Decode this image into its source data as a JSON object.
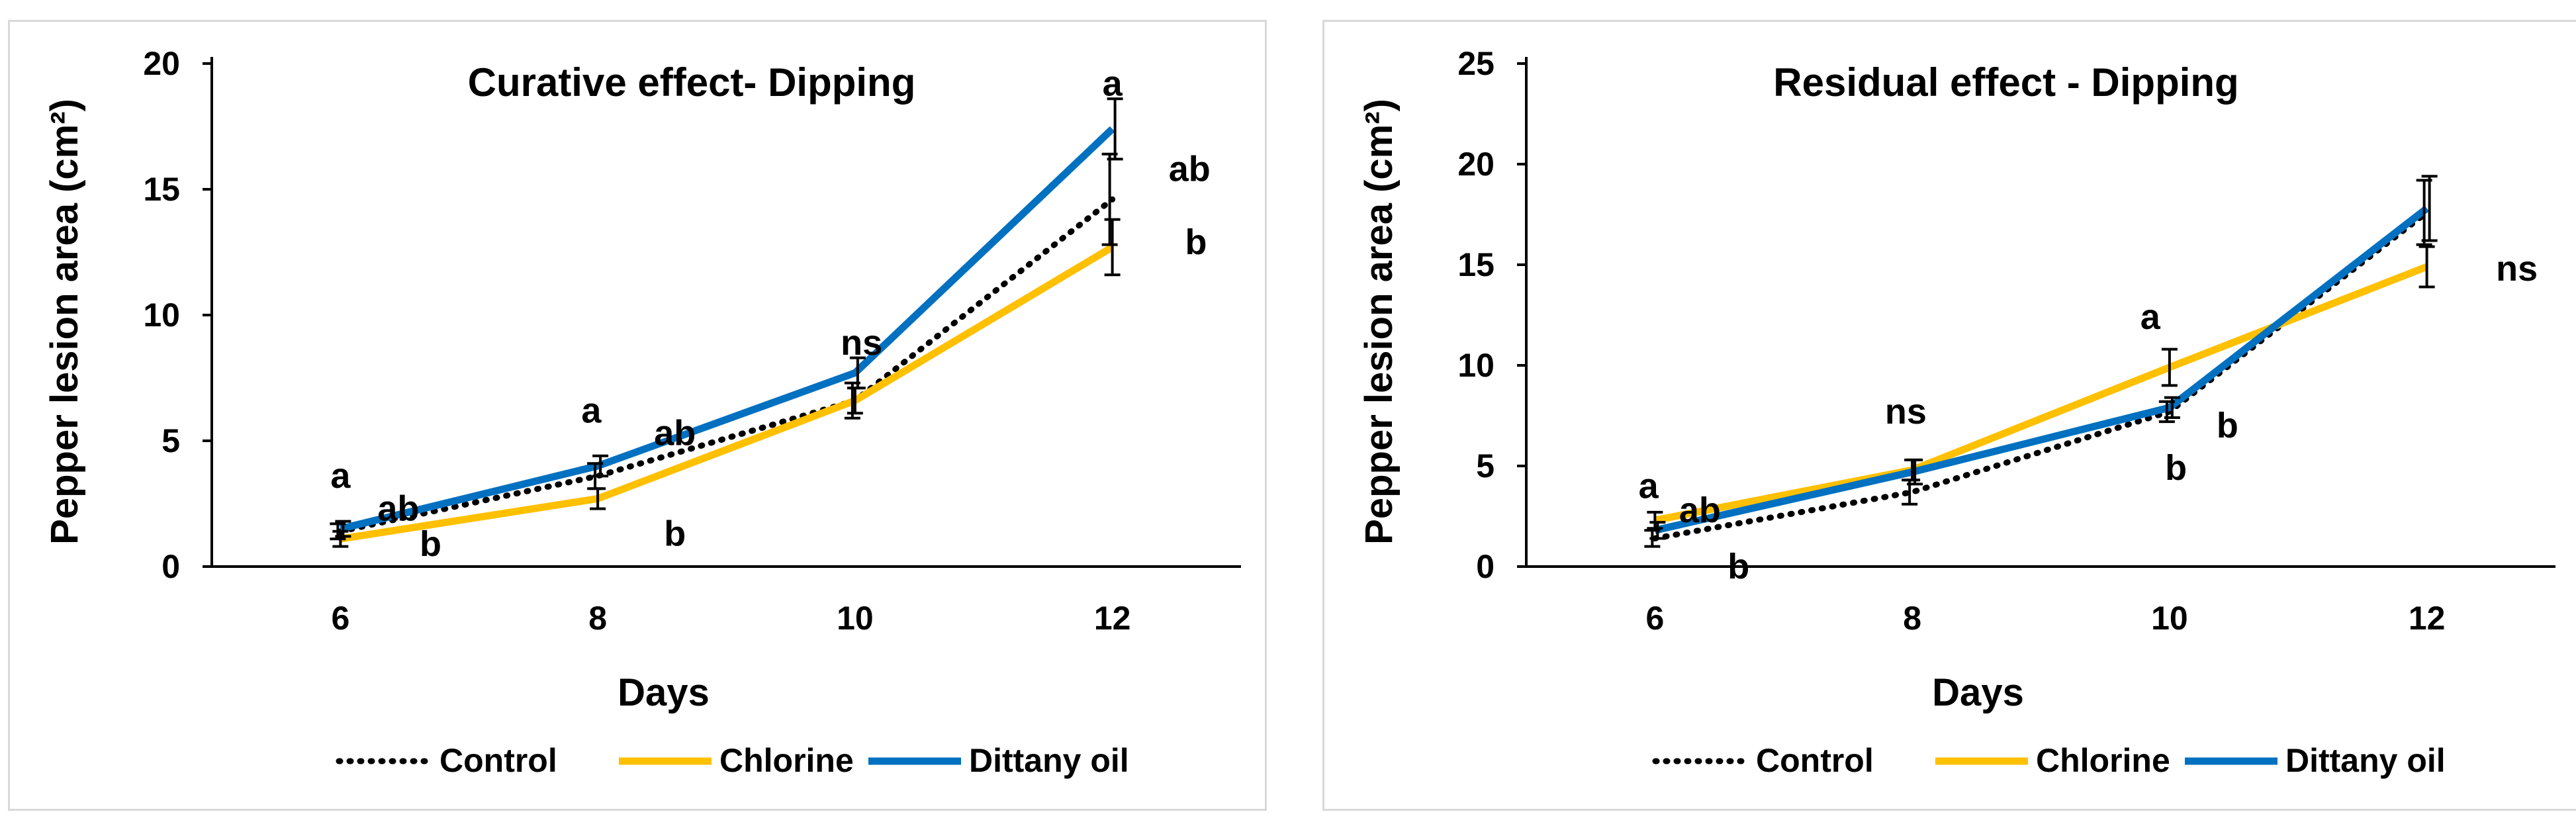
{
  "colors": {
    "control": "#000000",
    "chlorine": "#FFC000",
    "dittany": "#0070C0",
    "axis": "#000000",
    "border": "#d9d9d9"
  },
  "chart_data": [
    {
      "type": "line",
      "title": "Curative effect- Dipping",
      "xlabel": "Days",
      "ylabel": "Pepper lesion area (cm²)",
      "categories": [
        "6",
        "8",
        "10",
        "12"
      ],
      "ylim": [
        0,
        20
      ],
      "yticks": [
        0,
        5,
        10,
        15,
        20
      ],
      "grid": false,
      "legend": "bottom",
      "series": [
        {
          "name": "Control",
          "style": "dotted",
          "values": [
            1.4,
            3.6,
            6.6,
            14.6
          ],
          "errors": [
            0.3,
            0.5,
            0.7,
            1.8
          ]
        },
        {
          "name": "Chlorine",
          "style": "solid",
          "values": [
            1.1,
            2.7,
            6.6,
            12.7
          ],
          "errors": [
            0.3,
            0.4,
            0.5,
            1.1
          ]
        },
        {
          "name": "Dittany oil",
          "style": "solid",
          "values": [
            1.5,
            4.0,
            7.7,
            17.4
          ],
          "errors": [
            0.3,
            0.4,
            0.6,
            1.2
          ]
        }
      ],
      "significance_labels": [
        {
          "text": "a",
          "day": 6,
          "y": 3.6
        },
        {
          "text": "ab",
          "day": 6.45,
          "y": 2.3
        },
        {
          "text": "b",
          "day": 6.7,
          "y": 0.9
        },
        {
          "text": "a",
          "day": 7.95,
          "y": 6.2
        },
        {
          "text": "ab",
          "day": 8.6,
          "y": 5.3
        },
        {
          "text": "b",
          "day": 8.6,
          "y": 1.3
        },
        {
          "text": "ns",
          "day": 10.05,
          "y": 8.9
        },
        {
          "text": "a",
          "day": 12.0,
          "y": 19.2
        },
        {
          "text": "ab",
          "day": 12.6,
          "y": 15.8
        },
        {
          "text": "b",
          "day": 12.65,
          "y": 12.9
        }
      ]
    },
    {
      "type": "line",
      "title": "Residual effect - Dipping",
      "xlabel": "Days",
      "ylabel": "Pepper lesion area (cm²)",
      "categories": [
        "6",
        "8",
        "10",
        "12"
      ],
      "ylim": [
        0,
        25
      ],
      "yticks": [
        0,
        5,
        10,
        15,
        20,
        25
      ],
      "grid": false,
      "legend": "bottom",
      "series": [
        {
          "name": "Control",
          "style": "dotted",
          "values": [
            1.4,
            3.7,
            7.7,
            17.6
          ],
          "errors": [
            0.4,
            0.6,
            0.5,
            1.6
          ]
        },
        {
          "name": "Chlorine",
          "style": "solid",
          "values": [
            2.3,
            4.8,
            9.9,
            14.9
          ],
          "errors": [
            0.4,
            0.5,
            0.9,
            1.0
          ]
        },
        {
          "name": "Dittany oil",
          "style": "solid",
          "values": [
            1.8,
            4.7,
            7.9,
            17.8
          ],
          "errors": [
            0.4,
            0.6,
            0.5,
            1.6
          ]
        }
      ],
      "significance_labels": [
        {
          "text": "a",
          "day": 5.95,
          "y": 4.0
        },
        {
          "text": "ab",
          "day": 6.35,
          "y": 2.8
        },
        {
          "text": "b",
          "day": 6.65,
          "y": 0.0
        },
        {
          "text": "ns",
          "day": 7.95,
          "y": 7.7
        },
        {
          "text": "a",
          "day": 9.85,
          "y": 12.4
        },
        {
          "text": "b",
          "day": 10.45,
          "y": 7.0
        },
        {
          "text": "b",
          "day": 10.05,
          "y": 4.9
        },
        {
          "text": "ns",
          "day": 12.7,
          "y": 14.8
        }
      ]
    }
  ]
}
